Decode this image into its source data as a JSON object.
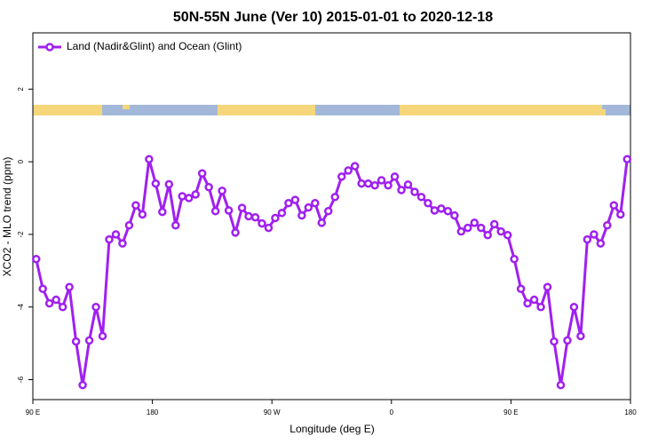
{
  "chart_data": {
    "type": "line",
    "title": "50N-55N June (Ver 10)   2015-01-01 to 2020-12-18",
    "x_label": "Longitude (deg E)",
    "y_label": "XCO2 - MLO trend (ppm)",
    "legend_position": "upper left",
    "xlim": [
      90,
      540
    ],
    "xticks": [
      {
        "value": 90,
        "label": "90 E"
      },
      {
        "value": 180,
        "label": "180"
      },
      {
        "value": 270,
        "label": "90 W"
      },
      {
        "value": 360,
        "label": "0"
      },
      {
        "value": 450,
        "label": "90 E"
      },
      {
        "value": 540,
        "label": "180"
      }
    ],
    "ylim": [
      -6.55,
      3.55
    ],
    "yticks": [
      -6,
      -4,
      -2,
      0,
      2
    ],
    "x": [
      92.5,
      97.5,
      102.5,
      107.5,
      112.5,
      117.5,
      122.5,
      127.5,
      132.5,
      137.5,
      142.5,
      147.5,
      152.5,
      157.5,
      162.5,
      167.5,
      172.5,
      177.5,
      182.5,
      187.5,
      192.5,
      197.5,
      202.5,
      207.5,
      212.5,
      217.5,
      222.5,
      227.5,
      232.5,
      237.5,
      242.5,
      247.5,
      252.5,
      257.5,
      262.5,
      267.5,
      272.5,
      277.5,
      282.5,
      287.5,
      292.5,
      297.5,
      302.5,
      307.5,
      312.5,
      317.5,
      322.5,
      327.5,
      332.5,
      337.5,
      342.5,
      347.5,
      352.5,
      357.5,
      362.5,
      367.5,
      372.5,
      377.5,
      382.5,
      387.5,
      392.5,
      397.5,
      402.5,
      407.5,
      412.5,
      417.5,
      422.5,
      427.5,
      432.5,
      437.5,
      442.5,
      447.5,
      452.5,
      457.5,
      462.5,
      467.5,
      472.5,
      477.5,
      482.5,
      487.5,
      492.5,
      497.5,
      502.5,
      507.5,
      512.5,
      517.5,
      522.5,
      527.5,
      532.5,
      537.5
    ],
    "series": [
      {
        "name": "Land (Nadir&Glint) and Ocean (Glint)",
        "color": "#a020f0",
        "values": [
          -2.68,
          -3.5,
          -3.9,
          -3.8,
          -4.0,
          -3.45,
          -4.95,
          -6.15,
          -4.92,
          -4.0,
          -4.8,
          -2.14,
          -2.0,
          -2.25,
          -1.75,
          -1.2,
          -1.45,
          0.07,
          -0.6,
          -1.38,
          -0.62,
          -1.75,
          -0.95,
          -1.0,
          -0.9,
          -0.32,
          -0.7,
          -1.36,
          -0.8,
          -1.34,
          -1.95,
          -1.27,
          -1.5,
          -1.53,
          -1.7,
          -1.82,
          -1.55,
          -1.41,
          -1.14,
          -1.05,
          -1.48,
          -1.26,
          -1.14,
          -1.68,
          -1.36,
          -0.97,
          -0.41,
          -0.24,
          -0.12,
          -0.6,
          -0.6,
          -0.65,
          -0.51,
          -0.65,
          -0.41,
          -0.78,
          -0.63,
          -0.83,
          -0.97,
          -1.14,
          -1.34,
          -1.29,
          -1.36,
          -1.48,
          -1.92,
          -1.82,
          -1.68,
          -1.82,
          -2.02,
          -1.72,
          -1.92,
          -2.02,
          -2.68,
          -3.5,
          -3.9,
          -3.8,
          -4.0,
          -3.45,
          -4.95,
          -6.15,
          -4.92,
          -4.0,
          -4.8,
          -2.14,
          -2.0,
          -2.25,
          -1.75,
          -1.2,
          -1.45,
          0.07
        ]
      }
    ]
  }
}
